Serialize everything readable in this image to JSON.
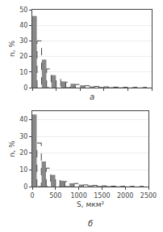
{
  "chart_data": [
    {
      "type": "bar",
      "x": [
        0,
        100,
        200,
        300,
        400,
        500,
        600,
        700,
        800,
        900,
        1000,
        1100,
        1200,
        1300,
        1400,
        1500,
        1600,
        1700,
        1800,
        1900,
        2000,
        2100,
        2200,
        2300,
        2400
      ],
      "series": [
        {
          "color": "#888888",
          "values": [
            46,
            0,
            18,
            0,
            8,
            0,
            4,
            0,
            2.5,
            0,
            1.5,
            0,
            0.8,
            0,
            0.5,
            0,
            0.3,
            0,
            0.2,
            0,
            0.1,
            0,
            0.1,
            0,
            0.05
          ]
        },
        {
          "color": "#444444",
          "line_style": "dashed",
          "values": [
            0,
            30,
            0,
            12,
            0,
            6,
            0,
            3.5,
            0,
            2,
            0,
            1.2,
            0,
            0.8,
            0,
            0.5,
            0,
            0.3,
            0,
            0.15,
            0,
            0.1,
            0,
            0.05,
            0
          ]
        }
      ],
      "xlim": [
        0,
        2500
      ],
      "xticks": [
        0,
        500,
        1000,
        1500,
        2000,
        2500
      ],
      "ylim": [
        0,
        50
      ],
      "yticks": [
        0,
        10,
        20,
        30,
        40,
        50
      ],
      "ylabel": "n, %",
      "annotations": [
        {
          "text": "a"
        }
      ],
      "grid": true,
      "tick_labels": "y"
    },
    {
      "type": "bar",
      "x": [
        0,
        100,
        200,
        300,
        400,
        500,
        600,
        700,
        800,
        900,
        1000,
        1100,
        1200,
        1300,
        1400,
        1500,
        1600,
        1700,
        1800,
        1900,
        2000,
        2100,
        2200,
        2300,
        2400
      ],
      "series": [
        {
          "color": "#888888",
          "values": [
            43,
            0,
            15,
            0,
            7,
            0,
            3.5,
            0,
            2,
            0,
            1.2,
            0,
            0.8,
            0,
            0.4,
            0,
            0.3,
            0,
            0.15,
            0,
            0.1,
            0,
            0.05,
            0,
            0.02
          ]
        },
        {
          "color": "#444444",
          "line_style": "dashed",
          "values": [
            0,
            26,
            0,
            11,
            0,
            5,
            0,
            3,
            0,
            1.8,
            0,
            1.0,
            0,
            0.7,
            0,
            0.4,
            0,
            0.25,
            0,
            0.12,
            0,
            0.08,
            0,
            0.04,
            0
          ]
        }
      ],
      "xlim": [
        0,
        2500
      ],
      "xticks": [
        0,
        500,
        1000,
        1500,
        2000,
        2500
      ],
      "ylim": [
        0,
        45
      ],
      "yticks": [
        0,
        10,
        20,
        30,
        40
      ],
      "ylabel": "n, %",
      "xlabel": "S, мкм²",
      "annotations": [
        {
          "text": "б"
        }
      ],
      "grid": true
    }
  ]
}
